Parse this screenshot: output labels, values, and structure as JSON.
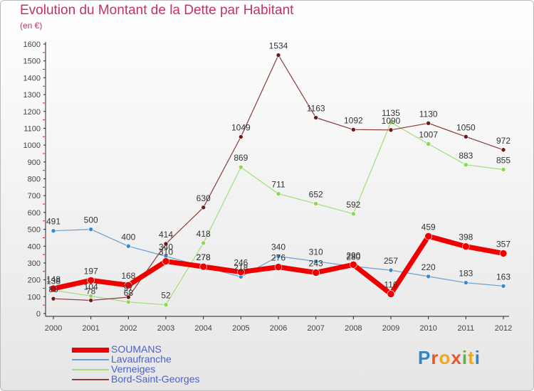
{
  "title": "Evolution du Montant de la Dette par Habitant",
  "subtitle": "(en €)",
  "logo": "Proxiti",
  "chart_data": {
    "type": "line",
    "title": "Evolution du Montant de la Dette par Habitant",
    "subtitle": "(en €)",
    "xlabel": "",
    "ylabel": "",
    "ylim": [
      0,
      1600
    ],
    "y_ticks": [
      0,
      100,
      200,
      300,
      400,
      500,
      600,
      700,
      800,
      900,
      1000,
      1100,
      1200,
      1300,
      1400,
      1500,
      1600
    ],
    "grid": false,
    "legend_position": "bottom-left",
    "categories": [
      "2000",
      "2001",
      "2002",
      "2003",
      "2004",
      "2005",
      "2006",
      "2007",
      "2008",
      "2009",
      "2010",
      "2011",
      "2012"
    ],
    "series": [
      {
        "name": "Lavaufranche",
        "color": "#6a9fcf",
        "marker": "#3a88cc",
        "width": 1.2,
        "values": [
          491,
          500,
          400,
          340,
          278,
          218,
          340,
          310,
          280,
          257,
          220,
          183,
          163
        ]
      },
      {
        "name": "Verneiges",
        "color": "#9fde78",
        "marker": "#8ad752",
        "width": 1.2,
        "values": [
          138,
          104,
          68,
          52,
          418,
          869,
          711,
          652,
          592,
          1135,
          1007,
          883,
          855
        ]
      },
      {
        "name": "Bord-Saint-Georges",
        "color": "#8a3a3a",
        "marker": "#6e1a1a",
        "width": 1.2,
        "values": [
          88,
          78,
          97,
          414,
          630,
          1049,
          1534,
          1163,
          1092,
          1090,
          1130,
          1050,
          972
        ]
      },
      {
        "name": "SOUMANS",
        "color": "#ee0000",
        "marker": "#ee0000",
        "width": 7,
        "values": [
          148,
          197,
          168,
          310,
          278,
          246,
          276,
          243,
          290,
          116,
          459,
          398,
          357
        ]
      }
    ],
    "legend_order": [
      "SOUMANS",
      "Lavaufranche",
      "Verneiges",
      "Bord-Saint-Georges"
    ]
  }
}
